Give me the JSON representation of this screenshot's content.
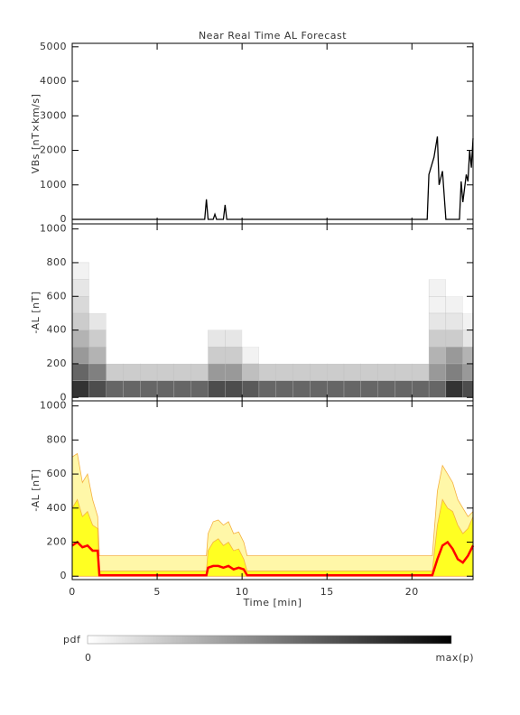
{
  "chart_data": [
    {
      "type": "line",
      "title": "Near Real Time AL Forecast",
      "ylabel": "VBs [nT×km/s]",
      "color": "#000000",
      "x": [
        0,
        7.8,
        7.9,
        8.0,
        8.3,
        8.4,
        8.5,
        8.9,
        9.0,
        9.1,
        20.9,
        21.0,
        21.3,
        21.5,
        21.6,
        21.8,
        22.0,
        22.8,
        22.9,
        23.0,
        23.2,
        23.3,
        23.4,
        23.5,
        23.6
      ],
      "values": [
        0,
        0,
        580,
        0,
        0,
        150,
        0,
        0,
        420,
        0,
        0,
        1300,
        1800,
        2400,
        1000,
        1400,
        0,
        0,
        1100,
        500,
        1300,
        1100,
        2000,
        1500,
        2350
      ],
      "xlim": [
        0,
        23.6
      ],
      "ylim": [
        -130,
        5100
      ],
      "yticks": [
        0,
        1000,
        2000,
        3000,
        4000,
        5000
      ]
    },
    {
      "type": "heatmap",
      "ylabel": "-AL [nT]",
      "x_bins": [
        0,
        1,
        2,
        3,
        4,
        5,
        6,
        7,
        8,
        9,
        10,
        11,
        12,
        13,
        14,
        15,
        16,
        17,
        18,
        19,
        20,
        21,
        22,
        23,
        23.6
      ],
      "y_bins": [
        0,
        100,
        200,
        300,
        400,
        500,
        600,
        700,
        800
      ],
      "z": [
        [
          0.8,
          0.6,
          0.4,
          0.3,
          0.2,
          0.15,
          0.1,
          0.05
        ],
        [
          0.7,
          0.5,
          0.3,
          0.2,
          0.1,
          0,
          0,
          0
        ],
        [
          0.6,
          0.2,
          0,
          0,
          0,
          0,
          0,
          0
        ],
        [
          0.6,
          0.2,
          0,
          0,
          0,
          0,
          0,
          0
        ],
        [
          0.6,
          0.2,
          0,
          0,
          0,
          0,
          0,
          0
        ],
        [
          0.6,
          0.2,
          0,
          0,
          0,
          0,
          0,
          0
        ],
        [
          0.6,
          0.2,
          0,
          0,
          0,
          0,
          0,
          0
        ],
        [
          0.6,
          0.2,
          0,
          0,
          0,
          0,
          0,
          0
        ],
        [
          0.7,
          0.4,
          0.2,
          0.1,
          0,
          0,
          0,
          0
        ],
        [
          0.7,
          0.4,
          0.2,
          0.1,
          0,
          0,
          0,
          0
        ],
        [
          0.65,
          0.25,
          0.05,
          0,
          0,
          0,
          0,
          0
        ],
        [
          0.6,
          0.2,
          0,
          0,
          0,
          0,
          0,
          0
        ],
        [
          0.6,
          0.2,
          0,
          0,
          0,
          0,
          0,
          0
        ],
        [
          0.6,
          0.2,
          0,
          0,
          0,
          0,
          0,
          0
        ],
        [
          0.6,
          0.2,
          0,
          0,
          0,
          0,
          0,
          0
        ],
        [
          0.6,
          0.2,
          0,
          0,
          0,
          0,
          0,
          0
        ],
        [
          0.6,
          0.2,
          0,
          0,
          0,
          0,
          0,
          0
        ],
        [
          0.6,
          0.2,
          0,
          0,
          0,
          0,
          0,
          0
        ],
        [
          0.6,
          0.2,
          0,
          0,
          0,
          0,
          0,
          0
        ],
        [
          0.6,
          0.2,
          0,
          0,
          0,
          0,
          0,
          0
        ],
        [
          0.6,
          0.2,
          0,
          0,
          0,
          0,
          0,
          0
        ],
        [
          0.6,
          0.4,
          0.3,
          0.2,
          0.1,
          0.05,
          0.05,
          0
        ],
        [
          0.8,
          0.5,
          0.4,
          0.2,
          0.1,
          0.05,
          0,
          0
        ],
        [
          0.7,
          0.4,
          0.3,
          0.1,
          0.05,
          0,
          0,
          0
        ]
      ],
      "colorbar": {
        "label": "pdf",
        "min_label": "0",
        "max_label": "max(p)"
      },
      "xlim": [
        0,
        23.6
      ],
      "ylim": [
        -20,
        1030
      ],
      "yticks": [
        0,
        200,
        400,
        600,
        800,
        1000
      ]
    },
    {
      "type": "area",
      "ylabel": "-AL [nT]",
      "xlabel": "Time [min]",
      "x": [
        0,
        0.3,
        0.6,
        0.9,
        1.2,
        1.5,
        1.6,
        7.9,
        8.0,
        8.3,
        8.6,
        8.9,
        9.2,
        9.5,
        9.8,
        10.1,
        10.3,
        21.2,
        21.5,
        21.8,
        22.1,
        22.4,
        22.7,
        23.0,
        23.3,
        23.6
      ],
      "series": [
        {
          "color": "#fff7a8",
          "edge": "#f5b041",
          "values": [
            700,
            720,
            550,
            600,
            450,
            350,
            120,
            120,
            250,
            320,
            330,
            300,
            320,
            250,
            260,
            200,
            120,
            120,
            500,
            650,
            600,
            550,
            450,
            400,
            350,
            380
          ]
        },
        {
          "color": "#ffff22",
          "edge": "#f5b041",
          "values": [
            400,
            450,
            350,
            380,
            300,
            280,
            30,
            30,
            150,
            200,
            220,
            180,
            200,
            150,
            160,
            100,
            30,
            30,
            300,
            450,
            400,
            380,
            300,
            250,
            280,
            350
          ]
        },
        {
          "color": "#ff0000",
          "values": [
            180,
            200,
            170,
            180,
            150,
            150,
            5,
            5,
            50,
            60,
            60,
            50,
            60,
            40,
            50,
            40,
            5,
            5,
            100,
            180,
            200,
            160,
            100,
            80,
            120,
            180
          ]
        }
      ],
      "xlim": [
        0,
        23.6
      ],
      "xticks": [
        0,
        5,
        10,
        15,
        20
      ],
      "ylim": [
        -20,
        1030
      ],
      "yticks": [
        0,
        200,
        400,
        600,
        800,
        1000
      ]
    }
  ]
}
